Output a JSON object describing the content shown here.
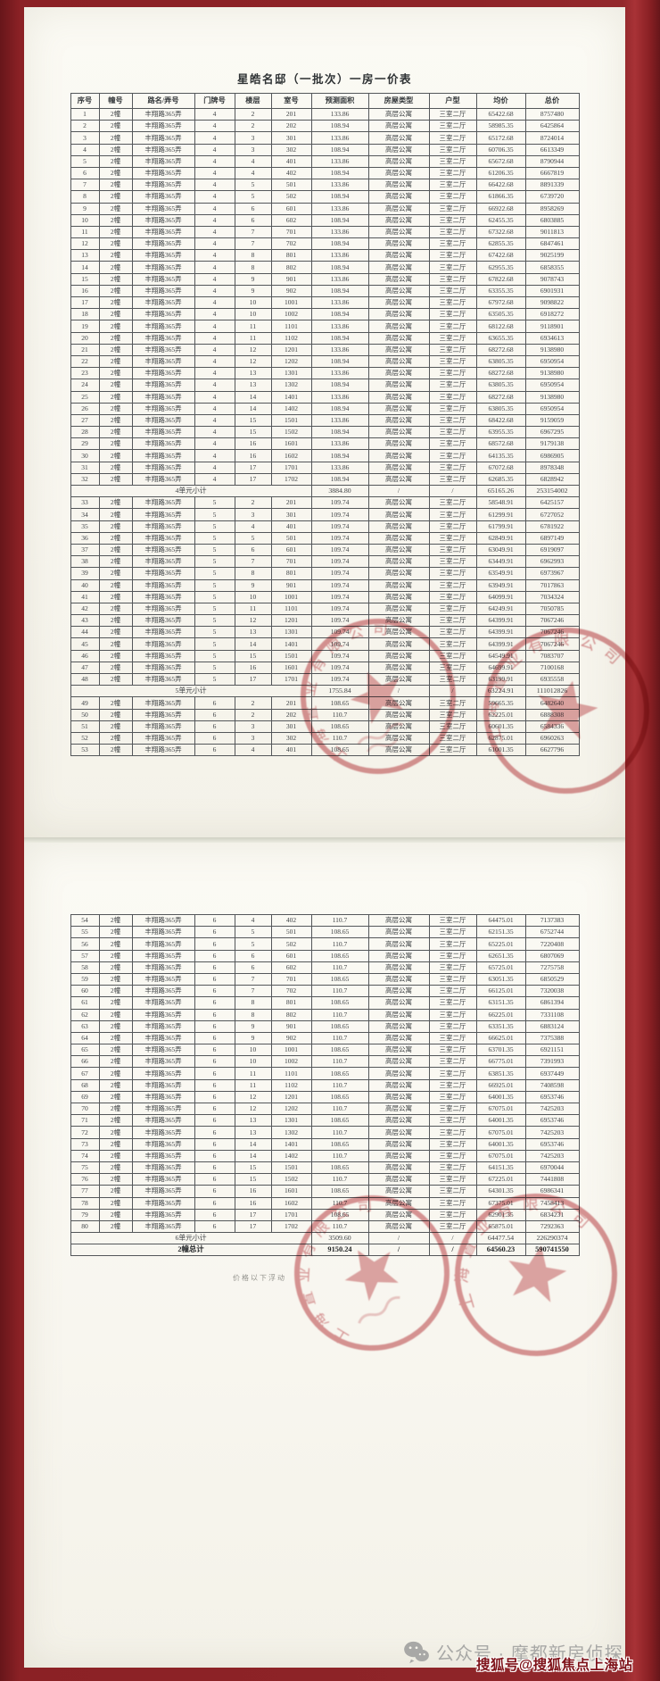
{
  "document": {
    "title": "星皓名邸（一批次）一房一价表",
    "note_below_total": "价格以下浮动",
    "columns": [
      "序号",
      "幢号",
      "路名/弄号",
      "门牌号",
      "楼层",
      "室号",
      "预测面积",
      "房屋类型",
      "户型",
      "均价",
      "总价"
    ],
    "page1_rows": [
      [
        "1",
        "2幢",
        "丰翔路365弄",
        "4",
        "2",
        "201",
        "133.86",
        "高层公寓",
        "三室二厅",
        "65422.68",
        "8757480"
      ],
      [
        "2",
        "2幢",
        "丰翔路365弄",
        "4",
        "2",
        "202",
        "108.94",
        "高层公寓",
        "三室二厅",
        "58985.35",
        "6425864"
      ],
      [
        "3",
        "2幢",
        "丰翔路365弄",
        "4",
        "3",
        "301",
        "133.86",
        "高层公寓",
        "三室二厅",
        "65172.68",
        "8724014"
      ],
      [
        "4",
        "2幢",
        "丰翔路365弄",
        "4",
        "3",
        "302",
        "108.94",
        "高层公寓",
        "三室二厅",
        "60706.35",
        "6613349"
      ],
      [
        "5",
        "2幢",
        "丰翔路365弄",
        "4",
        "4",
        "401",
        "133.86",
        "高层公寓",
        "三室二厅",
        "65672.68",
        "8790944"
      ],
      [
        "6",
        "2幢",
        "丰翔路365弄",
        "4",
        "4",
        "402",
        "108.94",
        "高层公寓",
        "三室二厅",
        "61206.35",
        "6667819"
      ],
      [
        "7",
        "2幢",
        "丰翔路365弄",
        "4",
        "5",
        "501",
        "133.86",
        "高层公寓",
        "三室二厅",
        "66422.68",
        "8891339"
      ],
      [
        "8",
        "2幢",
        "丰翔路365弄",
        "4",
        "5",
        "502",
        "108.94",
        "高层公寓",
        "三室二厅",
        "61866.35",
        "6739720"
      ],
      [
        "9",
        "2幢",
        "丰翔路365弄",
        "4",
        "6",
        "601",
        "133.86",
        "高层公寓",
        "三室二厅",
        "66922.68",
        "8958269"
      ],
      [
        "10",
        "2幢",
        "丰翔路365弄",
        "4",
        "6",
        "602",
        "108.94",
        "高层公寓",
        "三室二厅",
        "62455.35",
        "6803885"
      ],
      [
        "11",
        "2幢",
        "丰翔路365弄",
        "4",
        "7",
        "701",
        "133.86",
        "高层公寓",
        "三室二厅",
        "67322.68",
        "9011813"
      ],
      [
        "12",
        "2幢",
        "丰翔路365弄",
        "4",
        "7",
        "702",
        "108.94",
        "高层公寓",
        "三室二厅",
        "62855.35",
        "6847461"
      ],
      [
        "13",
        "2幢",
        "丰翔路365弄",
        "4",
        "8",
        "801",
        "133.86",
        "高层公寓",
        "三室二厅",
        "67422.68",
        "9025199"
      ],
      [
        "14",
        "2幢",
        "丰翔路365弄",
        "4",
        "8",
        "802",
        "108.94",
        "高层公寓",
        "三室二厅",
        "62955.35",
        "6858355"
      ],
      [
        "15",
        "2幢",
        "丰翔路365弄",
        "4",
        "9",
        "901",
        "133.86",
        "高层公寓",
        "三室二厅",
        "67822.68",
        "9078743"
      ],
      [
        "16",
        "2幢",
        "丰翔路365弄",
        "4",
        "9",
        "902",
        "108.94",
        "高层公寓",
        "三室二厅",
        "63355.35",
        "6901931"
      ],
      [
        "17",
        "2幢",
        "丰翔路365弄",
        "4",
        "10",
        "1001",
        "133.86",
        "高层公寓",
        "三室二厅",
        "67972.68",
        "9098822"
      ],
      [
        "18",
        "2幢",
        "丰翔路365弄",
        "4",
        "10",
        "1002",
        "108.94",
        "高层公寓",
        "三室二厅",
        "63505.35",
        "6918272"
      ],
      [
        "19",
        "2幢",
        "丰翔路365弄",
        "4",
        "11",
        "1101",
        "133.86",
        "高层公寓",
        "三室二厅",
        "68122.68",
        "9118901"
      ],
      [
        "20",
        "2幢",
        "丰翔路365弄",
        "4",
        "11",
        "1102",
        "108.94",
        "高层公寓",
        "三室二厅",
        "63655.35",
        "6934613"
      ],
      [
        "21",
        "2幢",
        "丰翔路365弄",
        "4",
        "12",
        "1201",
        "133.86",
        "高层公寓",
        "三室二厅",
        "68272.68",
        "9138980"
      ],
      [
        "22",
        "2幢",
        "丰翔路365弄",
        "4",
        "12",
        "1202",
        "108.94",
        "高层公寓",
        "三室二厅",
        "63805.35",
        "6950954"
      ],
      [
        "23",
        "2幢",
        "丰翔路365弄",
        "4",
        "13",
        "1301",
        "133.86",
        "高层公寓",
        "三室二厅",
        "68272.68",
        "9138980"
      ],
      [
        "24",
        "2幢",
        "丰翔路365弄",
        "4",
        "13",
        "1302",
        "108.94",
        "高层公寓",
        "三室二厅",
        "63805.35",
        "6950954"
      ],
      [
        "25",
        "2幢",
        "丰翔路365弄",
        "4",
        "14",
        "1401",
        "133.86",
        "高层公寓",
        "三室二厅",
        "68272.68",
        "9138980"
      ],
      [
        "26",
        "2幢",
        "丰翔路365弄",
        "4",
        "14",
        "1402",
        "108.94",
        "高层公寓",
        "三室二厅",
        "63805.35",
        "6950954"
      ],
      [
        "27",
        "2幢",
        "丰翔路365弄",
        "4",
        "15",
        "1501",
        "133.86",
        "高层公寓",
        "三室二厅",
        "68422.68",
        "9159059"
      ],
      [
        "28",
        "2幢",
        "丰翔路365弄",
        "4",
        "15",
        "1502",
        "108.94",
        "高层公寓",
        "三室二厅",
        "63955.35",
        "6967295"
      ],
      [
        "29",
        "2幢",
        "丰翔路365弄",
        "4",
        "16",
        "1601",
        "133.86",
        "高层公寓",
        "三室二厅",
        "68572.68",
        "9179138"
      ],
      [
        "30",
        "2幢",
        "丰翔路365弄",
        "4",
        "16",
        "1602",
        "108.94",
        "高层公寓",
        "三室二厅",
        "64135.35",
        "6986905"
      ],
      [
        "31",
        "2幢",
        "丰翔路365弄",
        "4",
        "17",
        "1701",
        "133.86",
        "高层公寓",
        "三室二厅",
        "67072.68",
        "8978348"
      ],
      [
        "32",
        "2幢",
        "丰翔路365弄",
        "4",
        "17",
        "1702",
        "108.94",
        "高层公寓",
        "三室二厅",
        "62685.35",
        "6828942"
      ],
      {
        "label": "4单元小计",
        "area": "3884.80",
        "s1": "/",
        "s2": "/",
        "price": "65165.26",
        "total": "253154002"
      },
      [
        "33",
        "2幢",
        "丰翔路365弄",
        "5",
        "2",
        "201",
        "109.74",
        "高层公寓",
        "三室二厅",
        "58548.91",
        "6425157"
      ],
      [
        "34",
        "2幢",
        "丰翔路365弄",
        "5",
        "3",
        "301",
        "109.74",
        "高层公寓",
        "三室二厅",
        "61299.91",
        "6727052"
      ],
      [
        "35",
        "2幢",
        "丰翔路365弄",
        "5",
        "4",
        "401",
        "109.74",
        "高层公寓",
        "三室二厅",
        "61799.91",
        "6781922"
      ],
      [
        "36",
        "2幢",
        "丰翔路365弄",
        "5",
        "5",
        "501",
        "109.74",
        "高层公寓",
        "三室二厅",
        "62849.91",
        "6897149"
      ],
      [
        "37",
        "2幢",
        "丰翔路365弄",
        "5",
        "6",
        "601",
        "109.74",
        "高层公寓",
        "三室二厅",
        "63049.91",
        "6919097"
      ],
      [
        "38",
        "2幢",
        "丰翔路365弄",
        "5",
        "7",
        "701",
        "109.74",
        "高层公寓",
        "三室二厅",
        "63449.91",
        "6962993"
      ],
      [
        "39",
        "2幢",
        "丰翔路365弄",
        "5",
        "8",
        "801",
        "109.74",
        "高层公寓",
        "三室二厅",
        "63549.91",
        "6973967"
      ],
      [
        "40",
        "2幢",
        "丰翔路365弄",
        "5",
        "9",
        "901",
        "109.74",
        "高层公寓",
        "三室二厅",
        "63949.91",
        "7017863"
      ],
      [
        "41",
        "2幢",
        "丰翔路365弄",
        "5",
        "10",
        "1001",
        "109.74",
        "高层公寓",
        "三室二厅",
        "64099.91",
        "7034324"
      ],
      [
        "42",
        "2幢",
        "丰翔路365弄",
        "5",
        "11",
        "1101",
        "109.74",
        "高层公寓",
        "三室二厅",
        "64249.91",
        "7050785"
      ],
      [
        "43",
        "2幢",
        "丰翔路365弄",
        "5",
        "12",
        "1201",
        "109.74",
        "高层公寓",
        "三室二厅",
        "64399.91",
        "7067246"
      ],
      [
        "44",
        "2幢",
        "丰翔路365弄",
        "5",
        "13",
        "1301",
        "109.74",
        "高层公寓",
        "三室二厅",
        "64399.91",
        "7067246"
      ],
      [
        "45",
        "2幢",
        "丰翔路365弄",
        "5",
        "14",
        "1401",
        "109.74",
        "高层公寓",
        "三室二厅",
        "64399.91",
        "7067246"
      ],
      [
        "46",
        "2幢",
        "丰翔路365弄",
        "5",
        "15",
        "1501",
        "109.74",
        "高层公寓",
        "三室二厅",
        "64549.91",
        "7083707"
      ],
      [
        "47",
        "2幢",
        "丰翔路365弄",
        "5",
        "16",
        "1601",
        "109.74",
        "高层公寓",
        "三室二厅",
        "64699.91",
        "7100168"
      ],
      [
        "48",
        "2幢",
        "丰翔路365弄",
        "5",
        "17",
        "1701",
        "109.74",
        "高层公寓",
        "三室二厅",
        "63199.91",
        "6935558"
      ],
      {
        "label": "5单元小计",
        "area": "1755.84",
        "s1": "/",
        "s2": "/",
        "price": "63224.91",
        "total": "111012826"
      },
      [
        "49",
        "2幢",
        "丰翔路365弄",
        "6",
        "2",
        "201",
        "108.65",
        "高层公寓",
        "三室二厅",
        "59665.35",
        "6482640"
      ],
      [
        "50",
        "2幢",
        "丰翔路365弄",
        "6",
        "2",
        "202",
        "110.7",
        "高层公寓",
        "三室二厅",
        "62225.01",
        "6888308"
      ],
      [
        "51",
        "2幢",
        "丰翔路365弄",
        "6",
        "3",
        "301",
        "108.65",
        "高层公寓",
        "三室二厅",
        "60601.35",
        "6584336"
      ],
      [
        "52",
        "2幢",
        "丰翔路365弄",
        "6",
        "3",
        "302",
        "110.7",
        "高层公寓",
        "三室二厅",
        "62875.01",
        "6960263"
      ],
      [
        "53",
        "2幢",
        "丰翔路365弄",
        "6",
        "4",
        "401",
        "108.65",
        "高层公寓",
        "三室二厅",
        "61001.35",
        "6627796"
      ]
    ],
    "page2_rows": [
      [
        "54",
        "2幢",
        "丰翔路365弄",
        "6",
        "4",
        "402",
        "110.7",
        "高层公寓",
        "三室二厅",
        "64475.01",
        "7137383"
      ],
      [
        "55",
        "2幢",
        "丰翔路365弄",
        "6",
        "5",
        "501",
        "108.65",
        "高层公寓",
        "三室二厅",
        "62151.35",
        "6752744"
      ],
      [
        "56",
        "2幢",
        "丰翔路365弄",
        "6",
        "5",
        "502",
        "110.7",
        "高层公寓",
        "三室二厅",
        "65225.01",
        "7220408"
      ],
      [
        "57",
        "2幢",
        "丰翔路365弄",
        "6",
        "6",
        "601",
        "108.65",
        "高层公寓",
        "三室二厅",
        "62651.35",
        "6807069"
      ],
      [
        "58",
        "2幢",
        "丰翔路365弄",
        "6",
        "6",
        "602",
        "110.7",
        "高层公寓",
        "三室二厅",
        "65725.01",
        "7275758"
      ],
      [
        "59",
        "2幢",
        "丰翔路365弄",
        "6",
        "7",
        "701",
        "108.65",
        "高层公寓",
        "三室二厅",
        "63051.35",
        "6850529"
      ],
      [
        "60",
        "2幢",
        "丰翔路365弄",
        "6",
        "7",
        "702",
        "110.7",
        "高层公寓",
        "三室二厅",
        "66125.01",
        "7320038"
      ],
      [
        "61",
        "2幢",
        "丰翔路365弄",
        "6",
        "8",
        "801",
        "108.65",
        "高层公寓",
        "三室二厅",
        "63151.35",
        "6861394"
      ],
      [
        "62",
        "2幢",
        "丰翔路365弄",
        "6",
        "8",
        "802",
        "110.7",
        "高层公寓",
        "三室二厅",
        "66225.01",
        "7331108"
      ],
      [
        "63",
        "2幢",
        "丰翔路365弄",
        "6",
        "9",
        "901",
        "108.65",
        "高层公寓",
        "三室二厅",
        "63351.35",
        "6883124"
      ],
      [
        "64",
        "2幢",
        "丰翔路365弄",
        "6",
        "9",
        "902",
        "110.7",
        "高层公寓",
        "三室二厅",
        "66625.01",
        "7375388"
      ],
      [
        "65",
        "2幢",
        "丰翔路365弄",
        "6",
        "10",
        "1001",
        "108.65",
        "高层公寓",
        "三室二厅",
        "63701.35",
        "6921151"
      ],
      [
        "66",
        "2幢",
        "丰翔路365弄",
        "6",
        "10",
        "1002",
        "110.7",
        "高层公寓",
        "三室二厅",
        "66775.01",
        "7391993"
      ],
      [
        "67",
        "2幢",
        "丰翔路365弄",
        "6",
        "11",
        "1101",
        "108.65",
        "高层公寓",
        "三室二厅",
        "63851.35",
        "6937449"
      ],
      [
        "68",
        "2幢",
        "丰翔路365弄",
        "6",
        "11",
        "1102",
        "110.7",
        "高层公寓",
        "三室二厅",
        "66925.01",
        "7408598"
      ],
      [
        "69",
        "2幢",
        "丰翔路365弄",
        "6",
        "12",
        "1201",
        "108.65",
        "高层公寓",
        "三室二厅",
        "64001.35",
        "6953746"
      ],
      [
        "70",
        "2幢",
        "丰翔路365弄",
        "6",
        "12",
        "1202",
        "110.7",
        "高层公寓",
        "三室二厅",
        "67075.01",
        "7425203"
      ],
      [
        "71",
        "2幢",
        "丰翔路365弄",
        "6",
        "13",
        "1301",
        "108.65",
        "高层公寓",
        "三室二厅",
        "64001.35",
        "6953746"
      ],
      [
        "72",
        "2幢",
        "丰翔路365弄",
        "6",
        "13",
        "1302",
        "110.7",
        "高层公寓",
        "三室二厅",
        "67075.01",
        "7425203"
      ],
      [
        "73",
        "2幢",
        "丰翔路365弄",
        "6",
        "14",
        "1401",
        "108.65",
        "高层公寓",
        "三室二厅",
        "64001.35",
        "6953746"
      ],
      [
        "74",
        "2幢",
        "丰翔路365弄",
        "6",
        "14",
        "1402",
        "110.7",
        "高层公寓",
        "三室二厅",
        "67075.01",
        "7425203"
      ],
      [
        "75",
        "2幢",
        "丰翔路365弄",
        "6",
        "15",
        "1501",
        "108.65",
        "高层公寓",
        "三室二厅",
        "64151.35",
        "6970044"
      ],
      [
        "76",
        "2幢",
        "丰翔路365弄",
        "6",
        "15",
        "1502",
        "110.7",
        "高层公寓",
        "三室二厅",
        "67225.01",
        "7441808"
      ],
      [
        "77",
        "2幢",
        "丰翔路365弄",
        "6",
        "16",
        "1601",
        "108.65",
        "高层公寓",
        "三室二厅",
        "64301.35",
        "6986341"
      ],
      [
        "78",
        "2幢",
        "丰翔路365弄",
        "6",
        "16",
        "1602",
        "110.7",
        "高层公寓",
        "三室二厅",
        "67375.01",
        "7458413"
      ],
      [
        "79",
        "2幢",
        "丰翔路365弄",
        "6",
        "17",
        "1701",
        "108.65",
        "高层公寓",
        "三室二厅",
        "62901.35",
        "6834231"
      ],
      [
        "80",
        "2幢",
        "丰翔路365弄",
        "6",
        "17",
        "1702",
        "110.7",
        "高层公寓",
        "三室二厅",
        "65875.01",
        "7292363"
      ],
      {
        "label": "6单元小计",
        "area": "3509.60",
        "s1": "/",
        "s2": "/",
        "price": "64477.54",
        "total": "226290374"
      },
      {
        "label": "2幢总计",
        "bold": true,
        "area": "9150.24",
        "s1": "/",
        "s2": "/",
        "price": "64560.23",
        "total": "590741550"
      }
    ]
  },
  "stamps": {
    "company_arc": "上海置业有限公司",
    "color": "#c4565c"
  },
  "watermark": {
    "wechat_label": "公众号 · 摩都新房侦探",
    "sohu_label": "搜狐号@搜狐焦点上海站"
  },
  "colors": {
    "background_red": "#8b2125",
    "paper": "#f8f6ef",
    "stamp_red": "#c4565c",
    "sohu_text_red": "#7e1118",
    "watermark_gray": "#a8a8a6"
  }
}
